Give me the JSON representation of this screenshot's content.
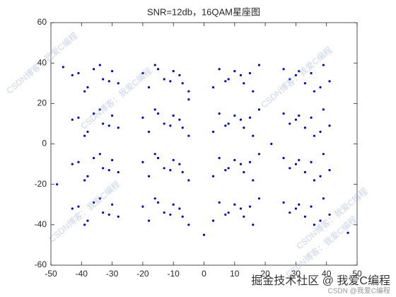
{
  "chart_data": {
    "type": "scatter",
    "title": "SNR=12db，16QAM星座图",
    "xlim": [
      -50,
      50
    ],
    "xticks": [
      -50,
      -40,
      -30,
      -20,
      -10,
      0,
      10,
      20,
      30,
      40,
      50
    ],
    "ylim": [
      -60,
      60
    ],
    "yticks": [
      -60,
      -40,
      -20,
      0,
      20,
      40,
      60
    ],
    "color": "#0000cc",
    "x": [
      -41,
      -38,
      -36,
      -33,
      -30,
      -28,
      -39,
      -34,
      -31,
      -43,
      -18,
      -15,
      -13,
      -10,
      -7,
      -5,
      -16,
      -11,
      -8,
      -20,
      5,
      8,
      10,
      13,
      16,
      18,
      7,
      12,
      15,
      3,
      28,
      31,
      33,
      36,
      39,
      41,
      30,
      35,
      38,
      26,
      -41,
      -38,
      -36,
      -33,
      -30,
      -28,
      -39,
      -34,
      -31,
      -43,
      -18,
      -15,
      -13,
      -10,
      -7,
      -5,
      -16,
      -11,
      -8,
      -20,
      5,
      8,
      10,
      13,
      16,
      18,
      7,
      12,
      15,
      3,
      28,
      31,
      33,
      36,
      39,
      41,
      30,
      35,
      38,
      26,
      -41,
      -38,
      -36,
      -33,
      -30,
      -28,
      -39,
      -34,
      -31,
      -43,
      -18,
      -15,
      -13,
      -10,
      -7,
      -5,
      -16,
      -11,
      -8,
      -20,
      5,
      8,
      10,
      13,
      16,
      18,
      7,
      12,
      15,
      3,
      28,
      31,
      33,
      36,
      39,
      41,
      30,
      35,
      38,
      26,
      -41,
      -38,
      -36,
      -33,
      -30,
      -28,
      -39,
      -34,
      -31,
      -43,
      -18,
      -15,
      -13,
      -10,
      -7,
      -5,
      -16,
      -11,
      -8,
      -20,
      5,
      8,
      10,
      13,
      16,
      18,
      7,
      12,
      15,
      3,
      28,
      31,
      33,
      36,
      39,
      41,
      30,
      35,
      38,
      26,
      -46,
      47,
      -5,
      0,
      22,
      -48
    ],
    "y": [
      35,
      28,
      37,
      32,
      36,
      30,
      26,
      39,
      31,
      34,
      28,
      37,
      32,
      36,
      30,
      26,
      39,
      31,
      34,
      35,
      37,
      32,
      36,
      30,
      26,
      39,
      31,
      34,
      35,
      28,
      32,
      36,
      30,
      26,
      39,
      31,
      34,
      35,
      28,
      37,
      13,
      6,
      15,
      10,
      14,
      8,
      4,
      17,
      9,
      12,
      6,
      15,
      10,
      14,
      8,
      4,
      17,
      9,
      12,
      13,
      15,
      10,
      14,
      8,
      4,
      17,
      9,
      12,
      13,
      6,
      10,
      14,
      8,
      4,
      17,
      9,
      12,
      13,
      6,
      15,
      -9,
      -16,
      -7,
      -12,
      -8,
      -14,
      -18,
      -5,
      -13,
      -10,
      -16,
      -7,
      -12,
      -8,
      -14,
      -18,
      -5,
      -13,
      -10,
      -9,
      -7,
      -12,
      -8,
      -14,
      -18,
      -5,
      -13,
      -10,
      -9,
      -16,
      -12,
      -8,
      -14,
      -18,
      -5,
      -13,
      -10,
      -9,
      -16,
      -7,
      -31,
      -38,
      -29,
      -34,
      -30,
      -36,
      -40,
      -27,
      -35,
      -32,
      -38,
      -29,
      -34,
      -30,
      -36,
      -40,
      -27,
      -35,
      -32,
      -31,
      -29,
      -34,
      -30,
      -36,
      -40,
      -27,
      -35,
      -32,
      -31,
      -38,
      -34,
      -30,
      -36,
      -40,
      -27,
      -35,
      -32,
      -31,
      -38,
      -29,
      38,
      -44,
      22,
      -45,
      0,
      -20
    ]
  },
  "watermarks": {
    "diagonal": "CSDN博客：我爱C编程",
    "footer": "掘金技术社区 @ 我爱C编程",
    "footer_small": "CSDN @我爱C编程"
  }
}
